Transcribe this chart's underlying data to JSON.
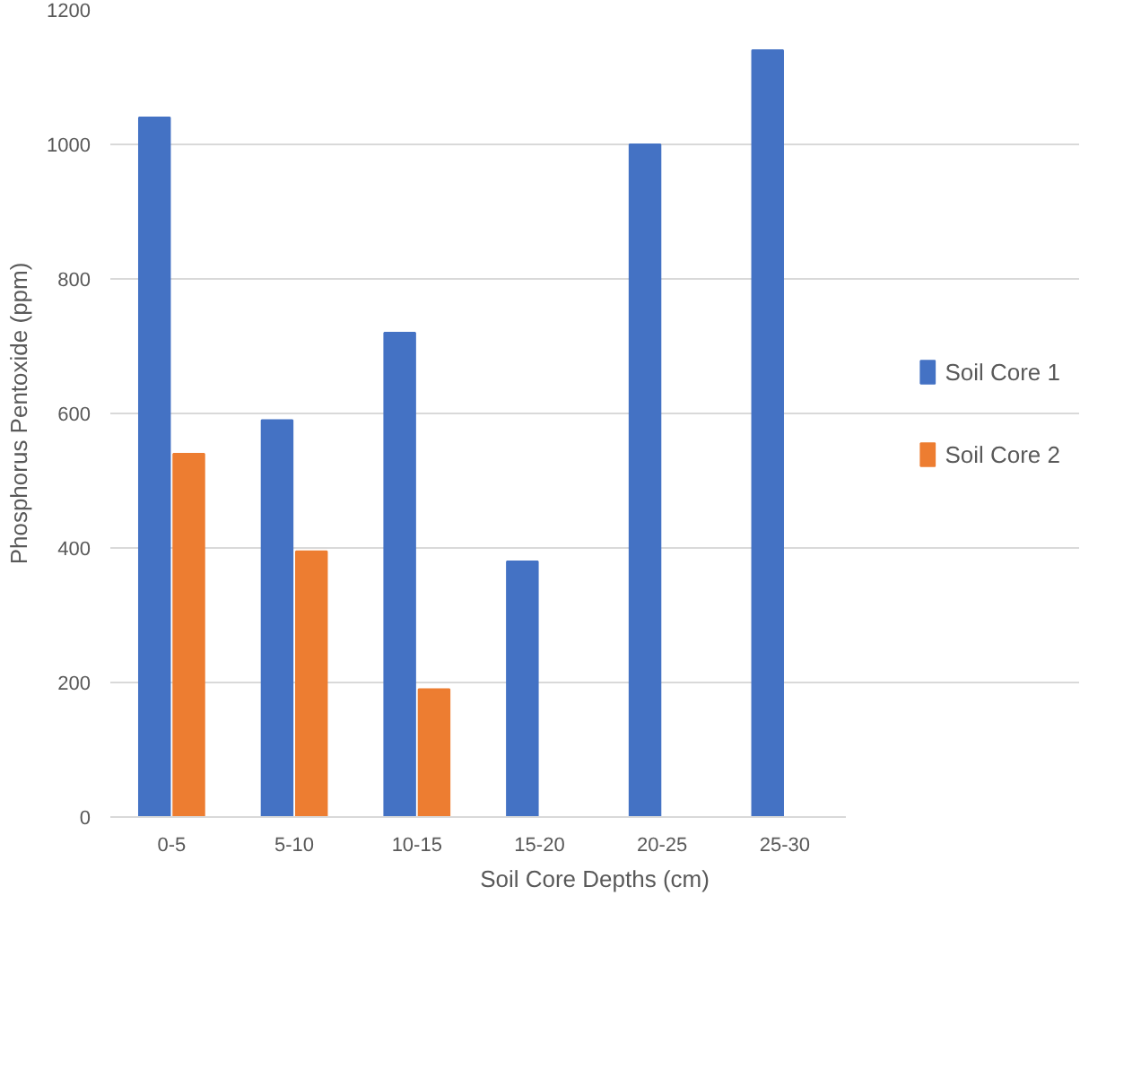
{
  "chart_data": {
    "type": "bar",
    "xlabel": "Soil Core Depths (cm)",
    "ylabel": "Phosphorus Pentoxide (ppm)",
    "categories": [
      "0-5",
      "5-10",
      "10-15",
      "15-20",
      "20-25",
      "25-30"
    ],
    "series": [
      {
        "name": "Soil Core 1",
        "color": "#4472c4",
        "values": [
          1040,
          590,
          720,
          380,
          1000,
          1140
        ]
      },
      {
        "name": "Soil Core 2",
        "color": "#ed7d31",
        "values": [
          540,
          395,
          190,
          null,
          null,
          null
        ]
      }
    ],
    "ylim": [
      0,
      1200
    ],
    "yticks": [
      0,
      200,
      400,
      600,
      800,
      1000,
      1200
    ],
    "grid": "y",
    "legend": "right"
  }
}
